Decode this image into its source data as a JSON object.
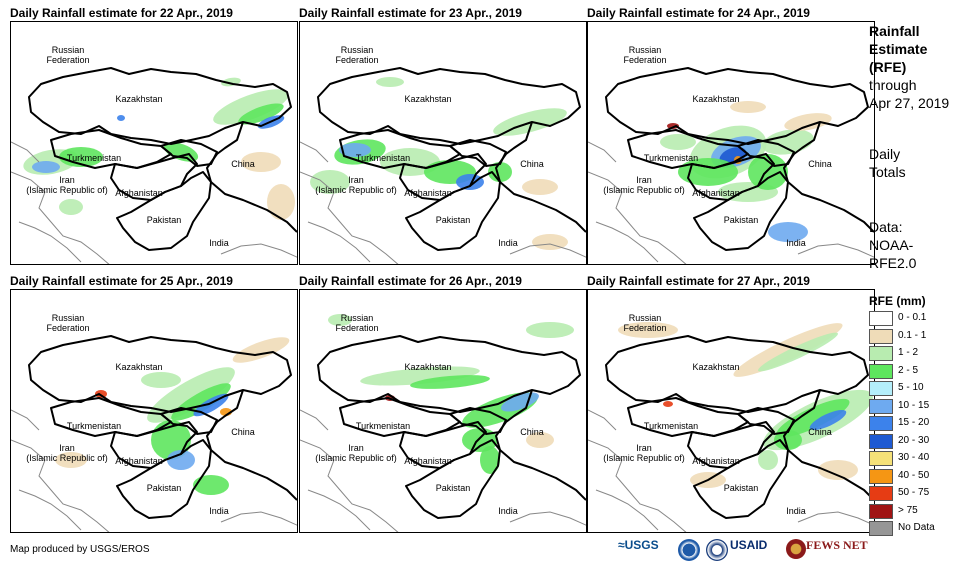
{
  "panels": [
    {
      "title": "Daily Rainfall estimate for 22 Apr., 2019"
    },
    {
      "title": "Daily Rainfall estimate for 23 Apr., 2019"
    },
    {
      "title": "Daily Rainfall estimate for 24 Apr., 2019"
    },
    {
      "title": "Daily Rainfall estimate for 25 Apr., 2019"
    },
    {
      "title": "Daily Rainfall estimate for 26 Apr., 2019"
    },
    {
      "title": "Daily Rainfall estimate for 27 Apr., 2019"
    }
  ],
  "labels": {
    "russia": "Russian\nFederation",
    "kazakhstan": "Kazakhstan",
    "turkmenistan": "Turkmenistan",
    "iran": "Iran\n(Islamic Republic of)",
    "afghanistan": "Afghanistan",
    "pakistan": "Pakistan",
    "india": "India",
    "china": "China"
  },
  "side": {
    "title_1": "Rainfall",
    "title_2": "Estimate",
    "title_3": "(RFE)",
    "through_1": "through",
    "through_2": "Apr 27, 2019",
    "daily_1": "Daily",
    "daily_2": "Totals",
    "data_1": "Data:",
    "data_2": "NOAA-",
    "data_3": "RFE2.0"
  },
  "legend": {
    "title": "RFE (mm)",
    "items": [
      {
        "label": "0 - 0.1",
        "color": "#ffffff"
      },
      {
        "label": "0.1 - 1",
        "color": "#efdcb8"
      },
      {
        "label": "1 - 2",
        "color": "#b8ecb0"
      },
      {
        "label": "2 - 5",
        "color": "#5ee65e"
      },
      {
        "label": "5 - 10",
        "color": "#b4eefa"
      },
      {
        "label": "10 - 15",
        "color": "#6eaaf0"
      },
      {
        "label": "15 - 20",
        "color": "#3c82eb"
      },
      {
        "label": "20 - 30",
        "color": "#1e5ad2"
      },
      {
        "label": "30 - 40",
        "color": "#f5e178"
      },
      {
        "label": "40 - 50",
        "color": "#f59614"
      },
      {
        "label": "50 - 75",
        "color": "#e63c14"
      },
      {
        "label": "> 75",
        "color": "#a01414"
      },
      {
        "label": "No Data",
        "color": "#969696"
      }
    ]
  },
  "credit": "Map produced by USGS/EROS",
  "logos": {
    "usgs": "≈USGS",
    "usaid": "USAID",
    "fews": "FEWS NET"
  }
}
